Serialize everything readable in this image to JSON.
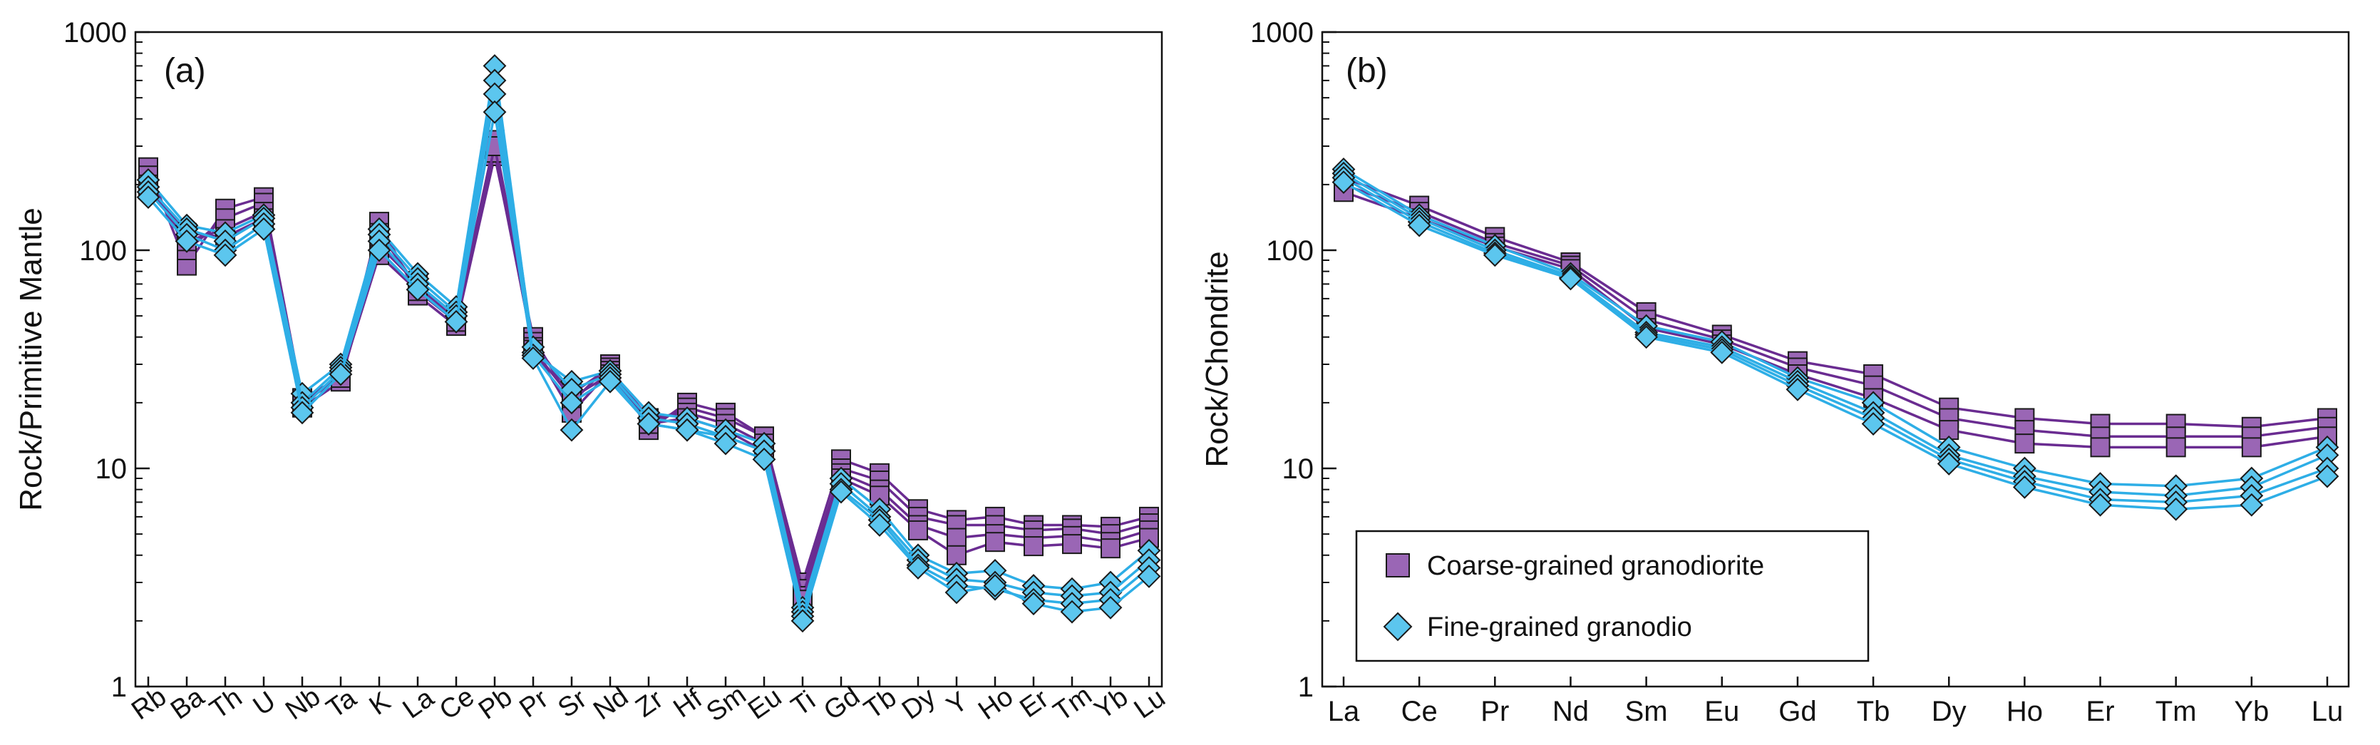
{
  "colors": {
    "coarse_line": "#6a2c91",
    "coarse_fill": "#9a66b5",
    "fine_line": "#2eaee6",
    "fine_fill": "#5cc6ee",
    "marker_edge": "#1a1a1a"
  },
  "chart_data": [
    {
      "type": "line",
      "panel_label": "(a)",
      "title": "",
      "xlabel": "",
      "ylabel": "Rock/Primitive Mantle",
      "yscale": "log",
      "ylim": [
        1,
        1000
      ],
      "yticks": [
        "1",
        "10",
        "100",
        "1000"
      ],
      "categories": [
        "Rb",
        "Ba",
        "Th",
        "U",
        "Nb",
        "Ta",
        "K",
        "La",
        "Ce",
        "Pb",
        "Pr",
        "Sr",
        "Nd",
        "Zr",
        "Hf",
        "Sm",
        "Eu",
        "Ti",
        "Gd",
        "Tb",
        "Dy",
        "Y",
        "Ho",
        "Er",
        "Tm",
        "Yb",
        "Lu"
      ],
      "series": [
        {
          "name": "Coarse-grained granodiorite",
          "group": "coarse",
          "values": [
            240,
            85,
            155,
            175,
            21,
            26,
            135,
            62,
            45,
            270,
            40,
            20,
            30,
            15,
            20,
            18,
            14,
            3.0,
            11,
            9.5,
            6.5,
            5.8,
            6.0,
            5.5,
            5.5,
            5.4,
            6.0
          ]
        },
        {
          "name": "Coarse-grained granodiorite",
          "group": "coarse",
          "values": [
            220,
            100,
            140,
            165,
            20,
            27,
            120,
            68,
            48,
            320,
            38,
            22,
            29,
            16,
            19,
            17,
            14,
            2.8,
            10,
            8.8,
            6.0,
            5.5,
            5.5,
            5.2,
            5.3,
            5.0,
            5.6
          ]
        },
        {
          "name": "Coarse-grained granodiorite",
          "group": "coarse",
          "values": [
            200,
            110,
            125,
            150,
            19,
            25,
            105,
            70,
            50,
            280,
            36,
            18,
            28,
            17,
            18,
            16,
            13,
            2.6,
            9.5,
            8.0,
            5.5,
            4.8,
            5.0,
            4.8,
            4.9,
            4.6,
            5.2
          ]
        },
        {
          "name": "Coarse-grained granodiorite",
          "group": "coarse",
          "values": [
            190,
            120,
            115,
            140,
            20,
            26,
            95,
            65,
            47,
            300,
            35,
            21,
            27,
            16,
            17,
            15,
            12,
            2.5,
            9.0,
            7.5,
            5.2,
            4.0,
            4.6,
            4.4,
            4.5,
            4.3,
            4.8
          ]
        },
        {
          "name": "Fine-grained granodio",
          "group": "fine",
          "values": [
            210,
            130,
            120,
            145,
            22,
            30,
            125,
            78,
            55,
            700,
            34,
            25,
            28,
            18,
            17,
            15,
            13,
            2.3,
            9.0,
            6.5,
            4.0,
            3.3,
            3.4,
            2.9,
            2.8,
            3.0,
            4.2
          ]
        },
        {
          "name": "Fine-grained granodio",
          "group": "fine",
          "values": [
            195,
            125,
            110,
            140,
            20,
            29,
            118,
            74,
            52,
            600,
            36,
            23,
            27,
            17,
            16,
            14,
            12,
            2.2,
            8.5,
            6.0,
            3.8,
            3.1,
            3.0,
            2.7,
            2.6,
            2.7,
            3.8
          ]
        },
        {
          "name": "Fine-grained granodio",
          "group": "fine",
          "values": [
            185,
            118,
            100,
            132,
            19,
            28,
            110,
            70,
            50,
            520,
            33,
            20,
            26,
            16,
            15,
            14,
            12,
            2.1,
            8.0,
            5.8,
            3.6,
            2.9,
            2.8,
            2.5,
            2.4,
            2.5,
            3.5
          ]
        },
        {
          "name": "Fine-grained granodio",
          "group": "fine",
          "values": [
            175,
            110,
            95,
            125,
            18,
            27,
            100,
            66,
            47,
            430,
            32,
            15,
            25,
            16,
            15,
            13,
            11,
            2.0,
            7.8,
            5.5,
            3.5,
            2.7,
            2.9,
            2.4,
            2.2,
            2.3,
            3.2
          ]
        }
      ]
    },
    {
      "type": "line",
      "panel_label": "(b)",
      "title": "",
      "xlabel": "",
      "ylabel": "Rock/Chondrite",
      "yscale": "log",
      "ylim": [
        1,
        1000
      ],
      "yticks": [
        "1",
        "10",
        "100",
        "1000"
      ],
      "categories": [
        "La",
        "Ce",
        "Pr",
        "Nd",
        "Sm",
        "Eu",
        "Gd",
        "Tb",
        "Dy",
        "Ho",
        "Er",
        "Tm",
        "Yb",
        "Lu"
      ],
      "series": [
        {
          "name": "Coarse-grained granodiorite",
          "group": "coarse",
          "values": [
            215,
            160,
            115,
            88,
            52,
            41,
            31,
            27,
            19,
            17,
            16,
            16,
            15.5,
            17
          ]
        },
        {
          "name": "Coarse-grained granodiorite",
          "group": "coarse",
          "values": [
            200,
            150,
            108,
            85,
            48,
            39,
            29,
            24,
            17,
            15,
            14,
            14,
            14,
            15.5
          ]
        },
        {
          "name": "Coarse-grained granodiorite",
          "group": "coarse",
          "values": [
            185,
            140,
            104,
            82,
            44,
            37,
            27,
            21,
            15,
            13,
            12.5,
            12.5,
            12.5,
            14
          ]
        },
        {
          "name": "Fine-grained granodio",
          "group": "fine",
          "values": [
            235,
            145,
            105,
            78,
            45,
            38,
            26,
            20,
            12.5,
            10,
            8.5,
            8.3,
            9,
            12.5
          ]
        },
        {
          "name": "Fine-grained granodio",
          "group": "fine",
          "values": [
            225,
            140,
            100,
            76,
            42,
            36,
            25,
            18,
            11.5,
            9.2,
            7.8,
            7.5,
            8.2,
            11.5
          ]
        },
        {
          "name": "Fine-grained granodio",
          "group": "fine",
          "values": [
            215,
            135,
            97,
            75,
            41,
            35,
            24,
            17,
            11,
            8.7,
            7.2,
            7.0,
            7.5,
            10
          ]
        },
        {
          "name": "Fine-grained granodio",
          "group": "fine",
          "values": [
            205,
            130,
            95,
            74,
            40,
            34,
            23,
            16,
            10.5,
            8.2,
            6.8,
            6.5,
            6.8,
            9.2
          ]
        }
      ],
      "legend": {
        "placement": "bottom-left",
        "entries": [
          {
            "label": "Coarse-grained granodiorite",
            "group": "coarse",
            "marker": "square"
          },
          {
            "label": "Fine-grained granodio",
            "group": "fine",
            "marker": "diamond"
          }
        ]
      }
    }
  ]
}
